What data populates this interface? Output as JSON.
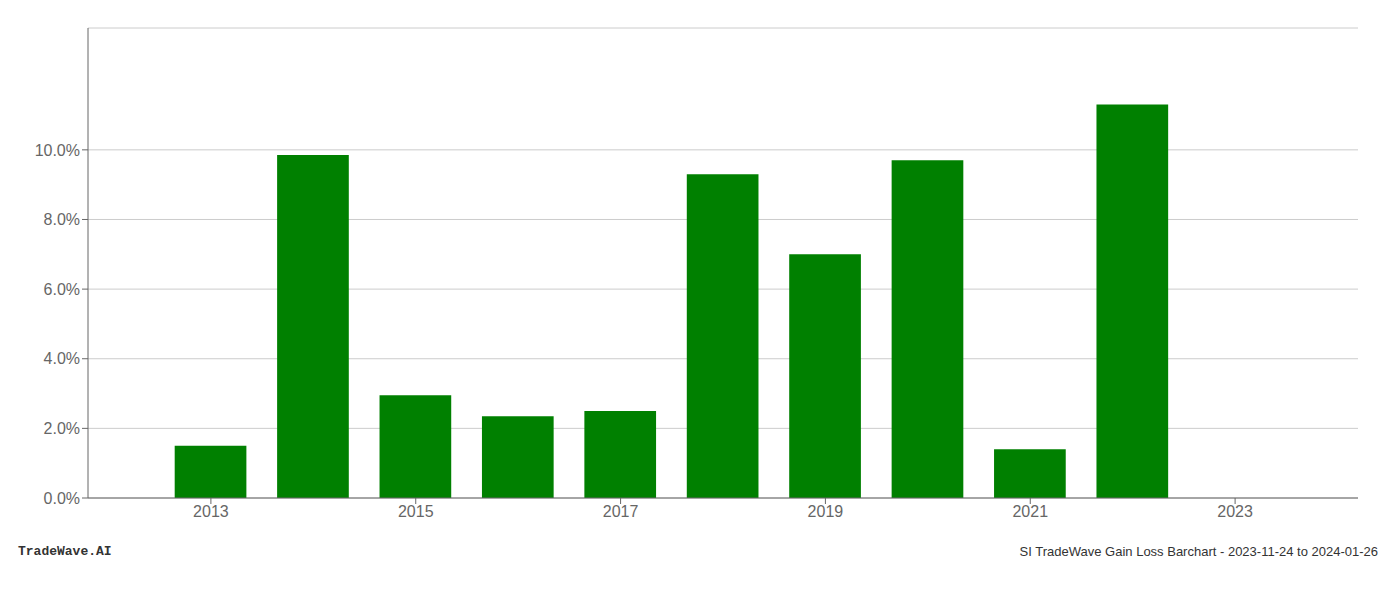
{
  "chart_data": {
    "type": "bar",
    "x": [
      2013,
      2014,
      2015,
      2016,
      2017,
      2018,
      2019,
      2020,
      2021,
      2022
    ],
    "values": [
      0.015,
      0.0985,
      0.0295,
      0.0235,
      0.025,
      0.093,
      0.07,
      0.097,
      0.014,
      0.113
    ],
    "color": "#008000",
    "xlim": [
      2011.8,
      2024.2
    ],
    "xticks": [
      2013,
      2015,
      2017,
      2019,
      2021,
      2023
    ],
    "ylim": [
      0,
      0.135
    ],
    "yticks": [
      {
        "value": 0.0,
        "label": "0.0%"
      },
      {
        "value": 0.02,
        "label": "2.0%"
      },
      {
        "value": 0.04,
        "label": "4.0%"
      },
      {
        "value": 0.06,
        "label": "6.0%"
      },
      {
        "value": 0.08,
        "label": "8.0%"
      },
      {
        "value": 0.1,
        "label": "10.0%"
      }
    ],
    "grid": true,
    "annotations": [
      "TradeWave.AI",
      "SI TradeWave Gain Loss Barchart - 2023-11-24 to 2024-01-26"
    ]
  }
}
